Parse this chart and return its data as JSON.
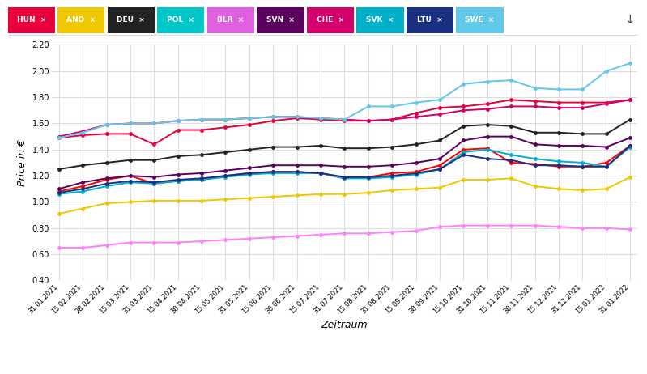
{
  "xlabel": "Zeitraum",
  "ylabel": "Price in €",
  "ylim": [
    0.4,
    2.2
  ],
  "yticks": [
    0.4,
    0.6,
    0.8,
    1.0,
    1.2,
    1.4,
    1.6,
    1.8,
    2.0,
    2.2
  ],
  "x_labels": [
    "31.01.2021",
    "15.02.2021",
    "28.02.2021",
    "15.03.2021",
    "31.03.2021",
    "15.04.2021",
    "30.04.2021",
    "15.05.2021",
    "31.05.2021",
    "15.06.2021",
    "30.06.2021",
    "15.07.2021",
    "31.07.2021",
    "15.08.2021",
    "31.08.2021",
    "15.09.2021",
    "30.09.2021",
    "15.10.2021",
    "31.10.2021",
    "15.11.2021",
    "30.11.2021",
    "15.12.2021",
    "31.12.2021",
    "15.01.2022",
    "31.01.2022"
  ],
  "legend_labels": [
    "HUN",
    "AND",
    "DEU",
    "POL",
    "BLR",
    "SVN",
    "CHE",
    "SVK",
    "LTU",
    "SWE"
  ],
  "legend_bg_colors": [
    "#e8003c",
    "#f0c800",
    "#222222",
    "#00c8c8",
    "#e060e0",
    "#5c0060",
    "#d4006c",
    "#00b0c8",
    "#1a3080",
    "#60c8e8"
  ],
  "series": [
    {
      "label": "HUN",
      "color": "#e8003c",
      "values": [
        1.49,
        1.51,
        1.52,
        1.52,
        1.44,
        1.55,
        1.55,
        1.57,
        1.59,
        1.62,
        1.64,
        1.63,
        1.62,
        1.62,
        1.63,
        1.68,
        1.72,
        1.73,
        1.75,
        1.78,
        1.77,
        1.76,
        1.76,
        1.76,
        1.78
      ]
    },
    {
      "label": "AND",
      "color": "#f0c800",
      "values": [
        0.91,
        0.95,
        0.99,
        1.0,
        1.01,
        1.01,
        1.01,
        1.02,
        1.03,
        1.04,
        1.05,
        1.06,
        1.06,
        1.07,
        1.09,
        1.1,
        1.11,
        1.17,
        1.17,
        1.18,
        1.12,
        1.1,
        1.09,
        1.1,
        1.19
      ]
    },
    {
      "label": "DEU",
      "color": "#222222",
      "values": [
        1.25,
        1.28,
        1.3,
        1.32,
        1.32,
        1.35,
        1.36,
        1.38,
        1.4,
        1.42,
        1.42,
        1.43,
        1.41,
        1.41,
        1.42,
        1.44,
        1.47,
        1.58,
        1.59,
        1.58,
        1.53,
        1.53,
        1.52,
        1.52,
        1.63
      ]
    },
    {
      "label": "POL",
      "color": "#ff0000",
      "values": [
        1.08,
        1.12,
        1.17,
        1.2,
        1.14,
        1.16,
        1.17,
        1.2,
        1.22,
        1.23,
        1.23,
        1.22,
        1.18,
        1.19,
        1.22,
        1.23,
        1.28,
        1.4,
        1.41,
        1.3,
        1.29,
        1.27,
        1.27,
        1.3,
        1.43
      ]
    },
    {
      "label": "BLR",
      "color": "#ff80ff",
      "values": [
        0.65,
        0.65,
        0.67,
        0.69,
        0.69,
        0.69,
        0.7,
        0.71,
        0.72,
        0.73,
        0.74,
        0.75,
        0.76,
        0.76,
        0.77,
        0.78,
        0.81,
        0.82,
        0.82,
        0.82,
        0.82,
        0.81,
        0.8,
        0.8,
        0.79
      ]
    },
    {
      "label": "SVN",
      "color": "#5c0060",
      "values": [
        1.1,
        1.15,
        1.18,
        1.2,
        1.19,
        1.21,
        1.22,
        1.24,
        1.26,
        1.28,
        1.28,
        1.28,
        1.27,
        1.27,
        1.28,
        1.3,
        1.33,
        1.47,
        1.5,
        1.5,
        1.44,
        1.43,
        1.43,
        1.42,
        1.49
      ]
    },
    {
      "label": "CHE",
      "color": "#d4006c",
      "values": [
        1.5,
        1.54,
        1.59,
        1.6,
        1.6,
        1.62,
        1.63,
        1.63,
        1.64,
        1.65,
        1.65,
        1.64,
        1.63,
        1.62,
        1.63,
        1.65,
        1.67,
        1.7,
        1.71,
        1.73,
        1.73,
        1.72,
        1.72,
        1.75,
        1.78
      ]
    },
    {
      "label": "SVK",
      "color": "#00b0c8",
      "values": [
        1.06,
        1.08,
        1.12,
        1.15,
        1.14,
        1.16,
        1.17,
        1.19,
        1.21,
        1.22,
        1.22,
        1.22,
        1.18,
        1.18,
        1.19,
        1.21,
        1.25,
        1.38,
        1.4,
        1.36,
        1.33,
        1.31,
        1.3,
        1.27,
        1.42
      ]
    },
    {
      "label": "LTU",
      "color": "#1a3080",
      "values": [
        1.07,
        1.1,
        1.14,
        1.16,
        1.15,
        1.17,
        1.18,
        1.2,
        1.22,
        1.23,
        1.23,
        1.22,
        1.19,
        1.19,
        1.2,
        1.22,
        1.25,
        1.36,
        1.33,
        1.32,
        1.28,
        1.28,
        1.27,
        1.27,
        1.43
      ]
    },
    {
      "label": "SWE",
      "color": "#60c8e8",
      "values": [
        1.49,
        1.53,
        1.59,
        1.6,
        1.6,
        1.62,
        1.63,
        1.63,
        1.64,
        1.65,
        1.65,
        1.64,
        1.63,
        1.73,
        1.73,
        1.76,
        1.78,
        1.9,
        1.92,
        1.93,
        1.87,
        1.86,
        1.86,
        2.0,
        2.06
      ]
    }
  ]
}
